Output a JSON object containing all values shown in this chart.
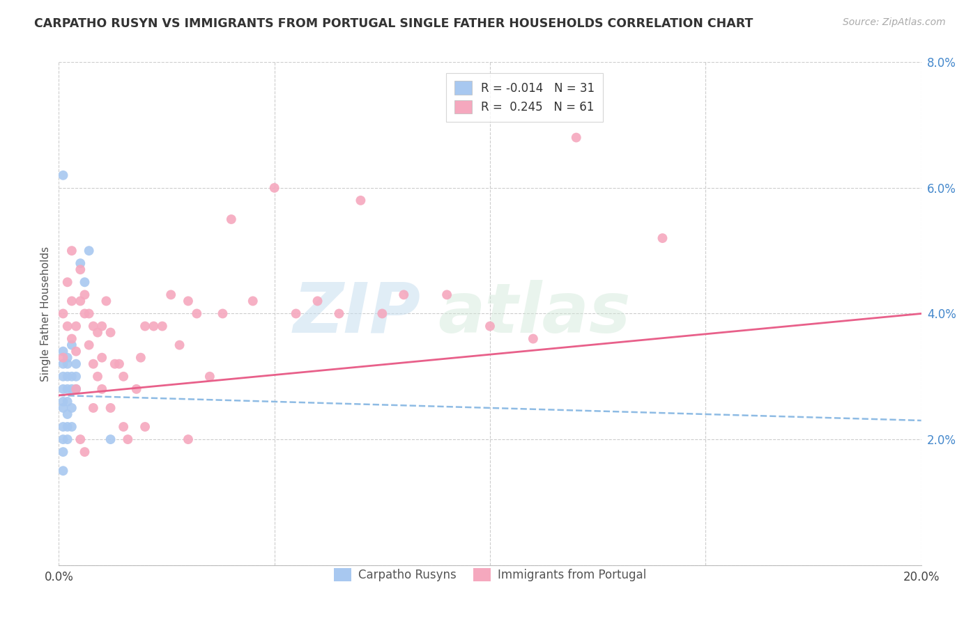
{
  "title": "CARPATHO RUSYN VS IMMIGRANTS FROM PORTUGAL SINGLE FATHER HOUSEHOLDS CORRELATION CHART",
  "source": "Source: ZipAtlas.com",
  "ylabel": "Single Father Households",
  "legend_label1": "Carpatho Rusyns",
  "legend_label2": "Immigrants from Portugal",
  "R1": -0.014,
  "N1": 31,
  "R2": 0.245,
  "N2": 61,
  "xlim": [
    0.0,
    0.2
  ],
  "ylim": [
    0.0,
    0.08
  ],
  "xticks": [
    0.0,
    0.05,
    0.1,
    0.15,
    0.2
  ],
  "yticks": [
    0.0,
    0.02,
    0.04,
    0.06,
    0.08
  ],
  "ytick_labels": [
    "",
    "2.0%",
    "4.0%",
    "6.0%",
    "8.0%"
  ],
  "xtick_labels": [
    "0.0%",
    "",
    "",
    "",
    "20.0%"
  ],
  "color_blue": "#a8c8f0",
  "color_pink": "#f5a8be",
  "color_blue_line": "#7ab0e0",
  "color_pink_line": "#e8608a",
  "watermark_zip": "ZIP",
  "watermark_atlas": "atlas",
  "blue_trend_start": 0.027,
  "blue_trend_end": 0.023,
  "pink_trend_start": 0.027,
  "pink_trend_end": 0.04,
  "blue_x": [
    0.001,
    0.001,
    0.001,
    0.001,
    0.001,
    0.001,
    0.001,
    0.001,
    0.001,
    0.001,
    0.002,
    0.002,
    0.002,
    0.002,
    0.002,
    0.002,
    0.002,
    0.002,
    0.003,
    0.003,
    0.003,
    0.003,
    0.003,
    0.004,
    0.004,
    0.004,
    0.005,
    0.006,
    0.007,
    0.012,
    0.001
  ],
  "blue_y": [
    0.03,
    0.026,
    0.025,
    0.022,
    0.02,
    0.028,
    0.032,
    0.034,
    0.018,
    0.015,
    0.032,
    0.03,
    0.028,
    0.026,
    0.024,
    0.022,
    0.02,
    0.033,
    0.035,
    0.03,
    0.028,
    0.025,
    0.022,
    0.032,
    0.03,
    0.028,
    0.048,
    0.045,
    0.05,
    0.02,
    0.062
  ],
  "pink_x": [
    0.001,
    0.001,
    0.002,
    0.002,
    0.003,
    0.003,
    0.004,
    0.004,
    0.005,
    0.005,
    0.006,
    0.006,
    0.007,
    0.007,
    0.008,
    0.008,
    0.009,
    0.009,
    0.01,
    0.01,
    0.011,
    0.012,
    0.013,
    0.014,
    0.015,
    0.016,
    0.018,
    0.019,
    0.02,
    0.022,
    0.024,
    0.026,
    0.028,
    0.03,
    0.032,
    0.035,
    0.038,
    0.04,
    0.045,
    0.05,
    0.055,
    0.06,
    0.065,
    0.07,
    0.075,
    0.08,
    0.09,
    0.1,
    0.11,
    0.12,
    0.003,
    0.004,
    0.005,
    0.006,
    0.008,
    0.01,
    0.012,
    0.015,
    0.02,
    0.03,
    0.14
  ],
  "pink_y": [
    0.033,
    0.04,
    0.038,
    0.045,
    0.042,
    0.05,
    0.038,
    0.034,
    0.042,
    0.047,
    0.04,
    0.043,
    0.035,
    0.04,
    0.038,
    0.032,
    0.037,
    0.03,
    0.038,
    0.033,
    0.042,
    0.037,
    0.032,
    0.032,
    0.03,
    0.02,
    0.028,
    0.033,
    0.038,
    0.038,
    0.038,
    0.043,
    0.035,
    0.042,
    0.04,
    0.03,
    0.04,
    0.055,
    0.042,
    0.06,
    0.04,
    0.042,
    0.04,
    0.058,
    0.04,
    0.043,
    0.043,
    0.038,
    0.036,
    0.068,
    0.036,
    0.028,
    0.02,
    0.018,
    0.025,
    0.028,
    0.025,
    0.022,
    0.022,
    0.02,
    0.052
  ]
}
